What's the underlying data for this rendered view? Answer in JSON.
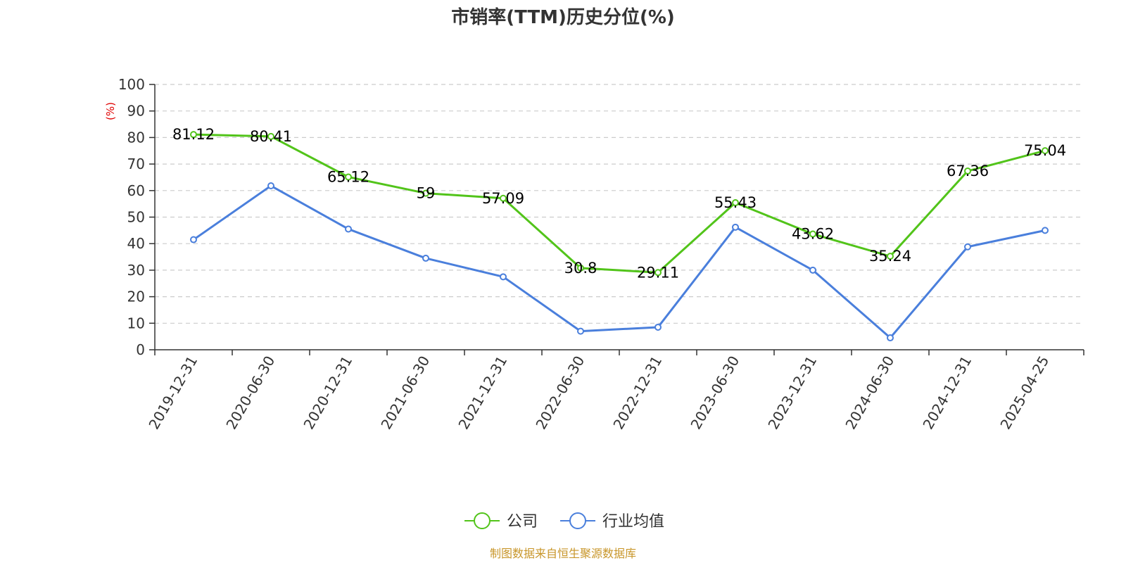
{
  "chart_data": {
    "type": "line",
    "title": "市销率(TTM)历史分位(%)",
    "ylabel": "(%)",
    "ylim": [
      0,
      100
    ],
    "yticks": [
      0,
      10,
      20,
      30,
      40,
      50,
      60,
      70,
      80,
      90,
      100
    ],
    "grid": true,
    "legend_position": "bottom",
    "categories": [
      "2019-12-31",
      "2020-06-30",
      "2020-12-31",
      "2021-06-30",
      "2021-12-31",
      "2022-06-30",
      "2022-12-31",
      "2023-06-30",
      "2023-12-31",
      "2024-06-30",
      "2024-12-31",
      "2025-04-25"
    ],
    "series": [
      {
        "name": "公司",
        "color": "#52c41a",
        "show_labels": true,
        "values": [
          81.12,
          80.41,
          65.12,
          59,
          57.09,
          30.8,
          29.11,
          55.43,
          43.62,
          35.24,
          67.36,
          75.04
        ],
        "labels": [
          "81.12",
          "80.41",
          "65.12",
          "59",
          "57.09",
          "30.8",
          "29.11",
          "55.43",
          "43.62",
          "35.24",
          "67.36",
          "75.04"
        ]
      },
      {
        "name": "行业均值",
        "color": "#4a7fdc",
        "show_labels": false,
        "values": [
          41.5,
          61.8,
          45.5,
          34.5,
          27.5,
          7,
          8.5,
          46.2,
          30,
          4.5,
          38.8,
          45
        ]
      }
    ],
    "source": "制图数据来自恒生聚源数据库",
    "source_color": "#c8962a",
    "ylabel_color": "#e00000"
  }
}
